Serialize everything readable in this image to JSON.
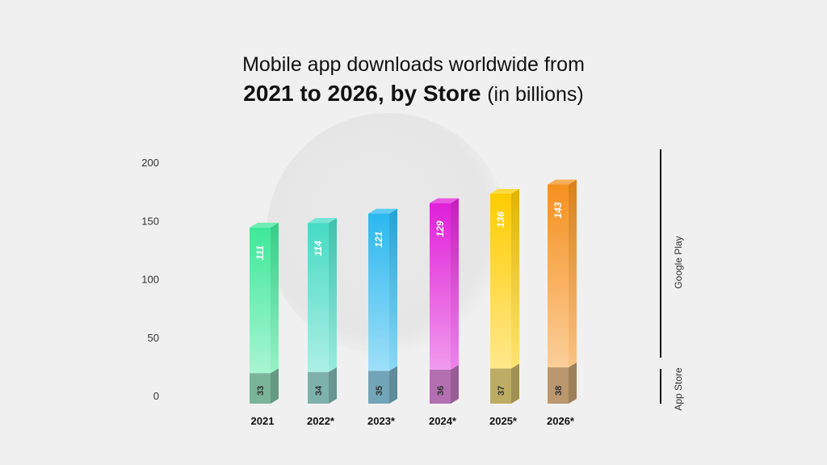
{
  "title": {
    "line1": "Mobile app downloads worldwide from",
    "line2_bold": "2021 to 2026, by Store",
    "line2_paren": "(in billions)"
  },
  "chart_data": {
    "type": "bar",
    "stacked": true,
    "categories": [
      "2021",
      "2022*",
      "2023*",
      "2024*",
      "2025*",
      "2026*"
    ],
    "series": [
      {
        "name": "App Store",
        "values": [
          33,
          34,
          35,
          36,
          37,
          38
        ]
      },
      {
        "name": "Google Play",
        "values": [
          111,
          114,
          121,
          129,
          136,
          143
        ]
      }
    ],
    "y_ticks": [
      "0",
      "50",
      "100",
      "150",
      "200"
    ],
    "ylim": [
      0,
      200
    ],
    "grid": false,
    "legend": "right side brackets",
    "colors": {
      "2021": "#3ee89a",
      "2022*": "#46dbc4",
      "2023*": "#2ab8ef",
      "2024*": "#e020d8",
      "2025*": "#ffcc00",
      "2026*": "#f5911e",
      "app_store_base": "#9a9a9a"
    }
  }
}
